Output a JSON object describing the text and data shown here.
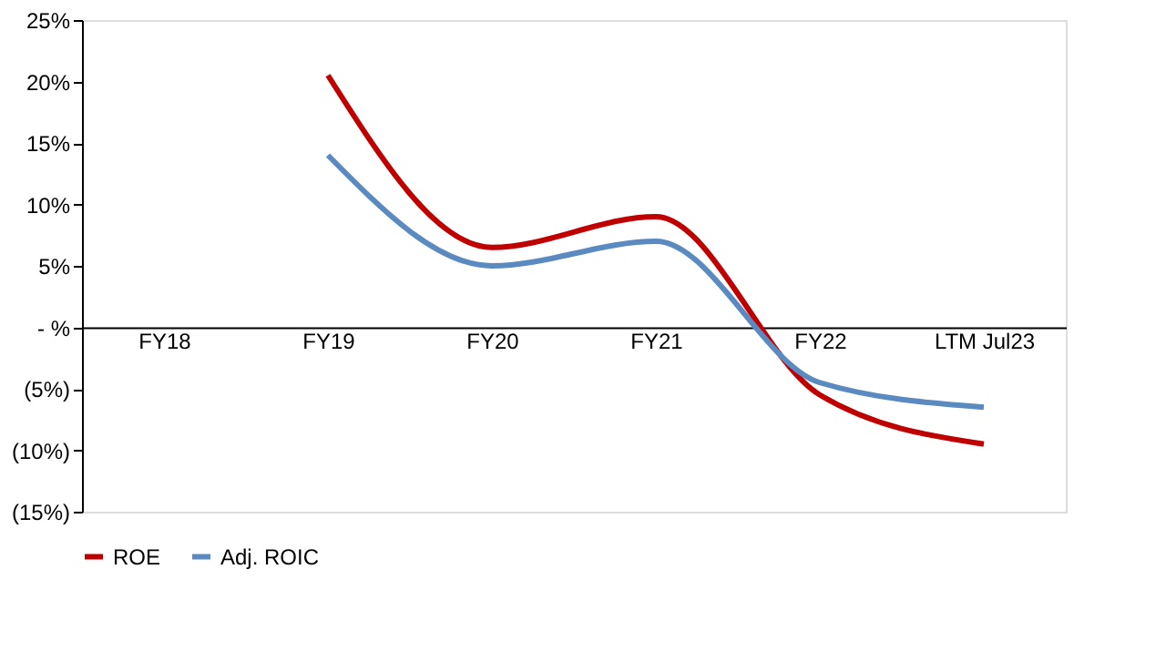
{
  "chart_data": {
    "type": "line",
    "categories": [
      "FY18",
      "FY19",
      "FY20",
      "FY21",
      "FY22",
      "LTM Jul23"
    ],
    "series": [
      {
        "name": "ROE",
        "color": "#c00000",
        "values": [
          null,
          20.5,
          6.5,
          9,
          -5.5,
          -9.5
        ]
      },
      {
        "name": "Adj. ROIC",
        "color": "#5b8ac0",
        "values": [
          null,
          14,
          5,
          7,
          -4.5,
          -6.5
        ]
      }
    ],
    "ylim": [
      -15,
      25
    ],
    "yticks": [
      {
        "value": -15,
        "label": "(15%)"
      },
      {
        "value": -10,
        "label": "(10%)"
      },
      {
        "value": -5,
        "label": "(5%)"
      },
      {
        "value": 0,
        "label": "- %"
      },
      {
        "value": 5,
        "label": "5%"
      },
      {
        "value": 10,
        "label": "10%"
      },
      {
        "value": 15,
        "label": "15%"
      },
      {
        "value": 20,
        "label": "20%"
      },
      {
        "value": 25,
        "label": "25%"
      }
    ],
    "grid": false,
    "legend": "bottom",
    "marker": "none",
    "line_style": "solid"
  }
}
